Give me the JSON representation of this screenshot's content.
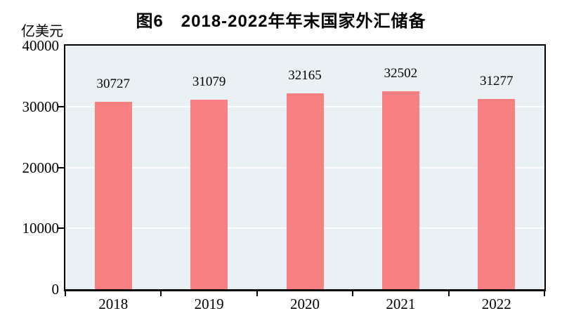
{
  "figure": {
    "title": "图6　2018-2022年年末国家外汇储备",
    "unit_label": "亿美元"
  },
  "chart_data": {
    "type": "bar",
    "title": "图6 2018-2022年年末国家外汇储备",
    "ylabel": "亿美元",
    "xlabel": "",
    "categories": [
      "2018",
      "2019",
      "2020",
      "2021",
      "2022"
    ],
    "values": [
      30727,
      31079,
      32165,
      32502,
      31277
    ],
    "data_labels": [
      "30727",
      "31079",
      "32165",
      "32502",
      "31277"
    ],
    "ylim": [
      0,
      40000
    ],
    "yticks": [
      0,
      10000,
      20000,
      30000,
      40000
    ],
    "ytick_labels": [
      "0",
      "10000",
      "20000",
      "30000",
      "40000"
    ],
    "grid": "horizontal gridlines at 10000/20000/30000, white, behind bars",
    "legend": "none",
    "colors": {
      "bar_fill": "#F98080",
      "plot_background": "#EAF1F4",
      "gridline": "#FFFFFF",
      "axis_frame": "#000000",
      "text": "#000000",
      "page_background": "#FFFFFF"
    }
  }
}
